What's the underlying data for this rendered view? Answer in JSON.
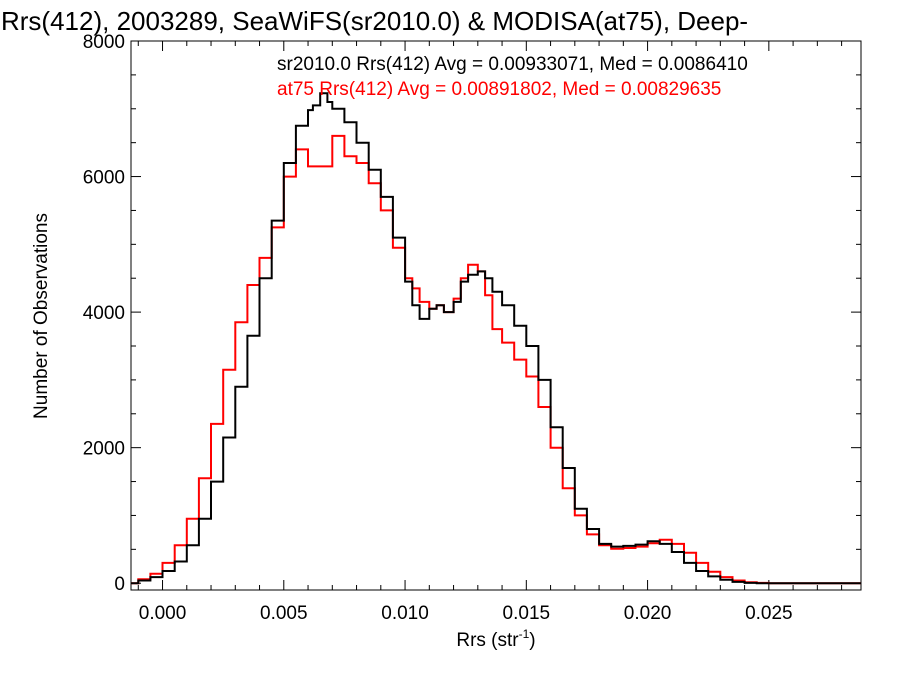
{
  "chart_data": {
    "type": "line",
    "step": true,
    "title": "Rrs(412), 2003289, SeaWiFS(sr2010.0) & MODISA(at75), Deep-",
    "xlabel": "Rrs (str",
    "xlabel_sup": "-1",
    "xlabel_close": ")",
    "ylabel": "Number of Observations",
    "xlim": [
      -0.0013,
      0.0288
    ],
    "ylim": [
      -100,
      8000
    ],
    "xticks": [
      0.0,
      0.005,
      0.01,
      0.015,
      0.02,
      0.025
    ],
    "xtick_labels": [
      "0.000",
      "0.005",
      "0.010",
      "0.015",
      "0.020",
      "0.025"
    ],
    "yticks": [
      0,
      2000,
      4000,
      6000,
      8000
    ],
    "ytick_labels": [
      "0",
      "2000",
      "4000",
      "6000",
      "8000"
    ],
    "grid": false,
    "legend_placement": "top-right",
    "annotations": [
      "sr2010.0 Rrs(412) Avg = 0.00933071, Med = 0.0086410",
      "at75 Rrs(412) Avg = 0.00891802, Med = 0.00829635"
    ],
    "series": [
      {
        "name": "sr2010.0",
        "color": "#000000",
        "x": [
          -0.0013,
          -0.001,
          -0.0005,
          0.0,
          0.0005,
          0.001,
          0.0015,
          0.002,
          0.0025,
          0.003,
          0.0035,
          0.004,
          0.0045,
          0.005,
          0.0055,
          0.006,
          0.0062,
          0.0065,
          0.0068,
          0.007,
          0.0075,
          0.008,
          0.0085,
          0.009,
          0.0095,
          0.01,
          0.0103,
          0.0106,
          0.011,
          0.0113,
          0.0116,
          0.012,
          0.0123,
          0.0126,
          0.013,
          0.0133,
          0.0136,
          0.014,
          0.0145,
          0.015,
          0.0155,
          0.016,
          0.0165,
          0.017,
          0.0175,
          0.018,
          0.0185,
          0.019,
          0.0195,
          0.02,
          0.0205,
          0.021,
          0.0215,
          0.022,
          0.0225,
          0.023,
          0.0235,
          0.024,
          0.0245,
          0.025,
          0.026,
          0.027,
          0.0288
        ],
        "values": [
          0,
          40,
          90,
          180,
          320,
          560,
          950,
          1500,
          2150,
          2900,
          3650,
          4500,
          5350,
          6200,
          6750,
          6980,
          7050,
          7230,
          7100,
          7000,
          6800,
          6500,
          6100,
          5700,
          5100,
          4450,
          4100,
          3900,
          4050,
          4100,
          4000,
          4150,
          4450,
          4550,
          4600,
          4500,
          4300,
          4100,
          3800,
          3500,
          3000,
          2300,
          1700,
          1100,
          800,
          580,
          540,
          550,
          570,
          620,
          580,
          460,
          300,
          180,
          100,
          50,
          20,
          5,
          0,
          0,
          0,
          0,
          0
        ]
      },
      {
        "name": "at75",
        "color": "#ff0000",
        "x": [
          -0.0013,
          -0.001,
          -0.0005,
          0.0,
          0.0005,
          0.001,
          0.0015,
          0.002,
          0.0025,
          0.003,
          0.0035,
          0.004,
          0.0045,
          0.005,
          0.0055,
          0.006,
          0.0065,
          0.007,
          0.0075,
          0.008,
          0.0085,
          0.009,
          0.0095,
          0.01,
          0.0103,
          0.0106,
          0.011,
          0.0113,
          0.0116,
          0.012,
          0.0123,
          0.0126,
          0.013,
          0.0133,
          0.0136,
          0.014,
          0.0145,
          0.015,
          0.0155,
          0.016,
          0.0165,
          0.017,
          0.0175,
          0.018,
          0.0185,
          0.019,
          0.0195,
          0.02,
          0.0205,
          0.021,
          0.0215,
          0.022,
          0.0225,
          0.023,
          0.0235,
          0.024,
          0.0245,
          0.025,
          0.026,
          0.027,
          0.0288
        ],
        "values": [
          0,
          60,
          140,
          300,
          560,
          950,
          1550,
          2350,
          3150,
          3850,
          4400,
          4800,
          5250,
          6000,
          6400,
          6150,
          6150,
          6600,
          6300,
          6200,
          5900,
          5500,
          4950,
          4500,
          4350,
          4150,
          4050,
          4100,
          4000,
          4200,
          4500,
          4700,
          4600,
          4250,
          3750,
          3550,
          3300,
          3050,
          2600,
          2000,
          1400,
          1000,
          720,
          560,
          510,
          520,
          540,
          590,
          640,
          580,
          450,
          300,
          170,
          90,
          40,
          15,
          5,
          0,
          0,
          0,
          0
        ]
      }
    ]
  }
}
